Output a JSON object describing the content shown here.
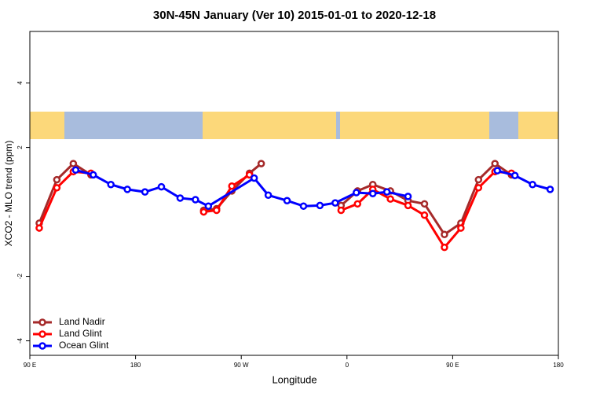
{
  "chart_data": {
    "type": "line",
    "title": "30N-45N January (Ver 10)   2015-01-01 to 2020-12-18",
    "x_label": "Longitude",
    "y_label": "XCO2 - MLO trend (ppm)",
    "xlim": [
      90,
      540
    ],
    "ylim": [
      -4.45,
      5.6
    ],
    "xticks": [
      {
        "value": 90,
        "label": "90 E"
      },
      180,
      {
        "value": 270,
        "label": "90 W"
      },
      {
        "value": 360,
        "label": "0"
      },
      {
        "value": 450,
        "label": "90 E"
      },
      {
        "value": 540,
        "label": "180"
      }
    ],
    "yticks": [
      -4,
      -2,
      2,
      4
    ],
    "legend": "bottom-left",
    "series": [
      {
        "name": "Land Nadir",
        "color": "#a52a2a",
        "x": [
          98,
          113,
          127,
          142,
          190,
          238,
          249,
          262,
          277,
          287,
          320,
          355,
          369,
          382,
          397,
          412,
          426,
          443,
          457,
          472,
          486,
          500
        ],
        "values": [
          -0.35,
          1.0,
          1.5,
          1.15,
          null,
          0.05,
          0.1,
          0.65,
          1.2,
          1.5,
          null,
          0.2,
          0.65,
          0.85,
          0.65,
          0.35,
          0.25,
          -0.7,
          -0.35,
          1.0,
          1.5,
          1.15
        ]
      },
      {
        "name": "Land Glint",
        "color": "#ff0000",
        "x": [
          98,
          113,
          127,
          142,
          190,
          238,
          249,
          262,
          277,
          320,
          355,
          369,
          382,
          397,
          412,
          426,
          443,
          457,
          472,
          486,
          500
        ],
        "values": [
          -0.5,
          0.75,
          1.25,
          1.2,
          null,
          0.0,
          0.05,
          0.8,
          1.15,
          null,
          0.05,
          0.25,
          0.7,
          0.4,
          0.2,
          -0.1,
          -1.1,
          -0.5,
          0.75,
          1.25,
          1.2
        ]
      },
      {
        "name": "Ocean Glint",
        "color": "#0000ff",
        "x": [
          129,
          144,
          159,
          173,
          188,
          202,
          218,
          231,
          242,
          281,
          293,
          309,
          323,
          337,
          350,
          368,
          382,
          394,
          412,
          450,
          488,
          503,
          518,
          533
        ],
        "values": [
          1.3,
          1.15,
          0.85,
          0.7,
          0.62,
          0.78,
          0.43,
          0.38,
          0.18,
          1.05,
          0.52,
          0.35,
          0.18,
          0.2,
          0.28,
          0.6,
          0.57,
          0.62,
          0.48,
          null,
          1.28,
          1.13,
          0.85,
          0.7
        ]
      }
    ]
  }
}
